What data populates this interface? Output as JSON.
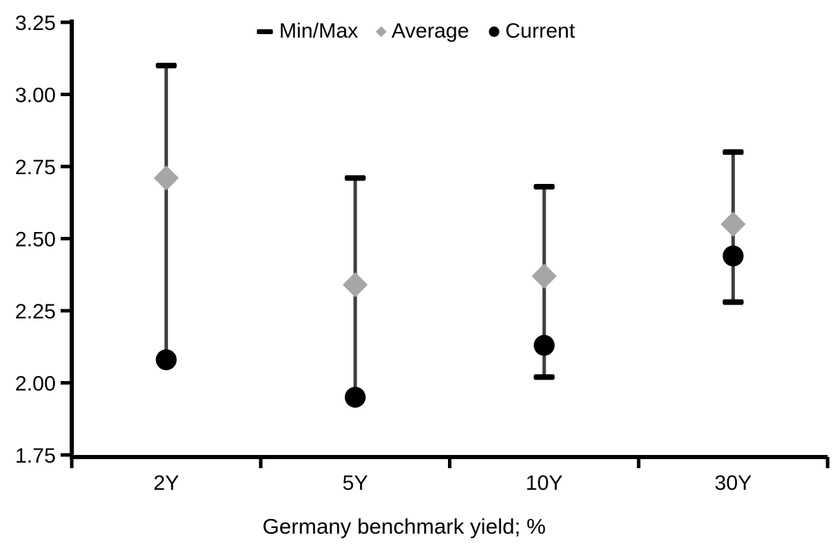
{
  "chart_data": {
    "type": "scatter",
    "subtype": "min-max-range-with-points",
    "title": "",
    "xlabel": "Germany benchmark yield; %",
    "ylabel": "",
    "categories": [
      "2Y",
      "5Y",
      "10Y",
      "30Y"
    ],
    "series": [
      {
        "name": "Min/Max",
        "marker": "dash",
        "color": "#000000",
        "line_color": "#3f3f3f",
        "max": [
          3.1,
          2.71,
          2.68,
          2.8
        ],
        "min": [
          2.08,
          1.95,
          2.02,
          2.28
        ],
        "min_cap_visible": [
          false,
          false,
          true,
          true
        ]
      },
      {
        "name": "Average",
        "marker": "diamond",
        "color": "#a6a6a6",
        "values": [
          2.71,
          2.34,
          2.37,
          2.55
        ]
      },
      {
        "name": "Current",
        "marker": "circle",
        "color": "#000000",
        "values": [
          2.08,
          1.95,
          2.13,
          2.44
        ]
      }
    ],
    "ylim": [
      1.75,
      3.25
    ],
    "y_ticks": [
      3.25,
      3.0,
      2.75,
      2.5,
      2.25,
      2.0,
      1.75
    ],
    "y_tick_labels": [
      "3.25",
      "3.00",
      "2.75",
      "2.50",
      "2.25",
      "2.00",
      "1.75"
    ],
    "grid": false,
    "legend_position": "top",
    "axis_color": "#000000",
    "background_color": "#ffffff"
  }
}
